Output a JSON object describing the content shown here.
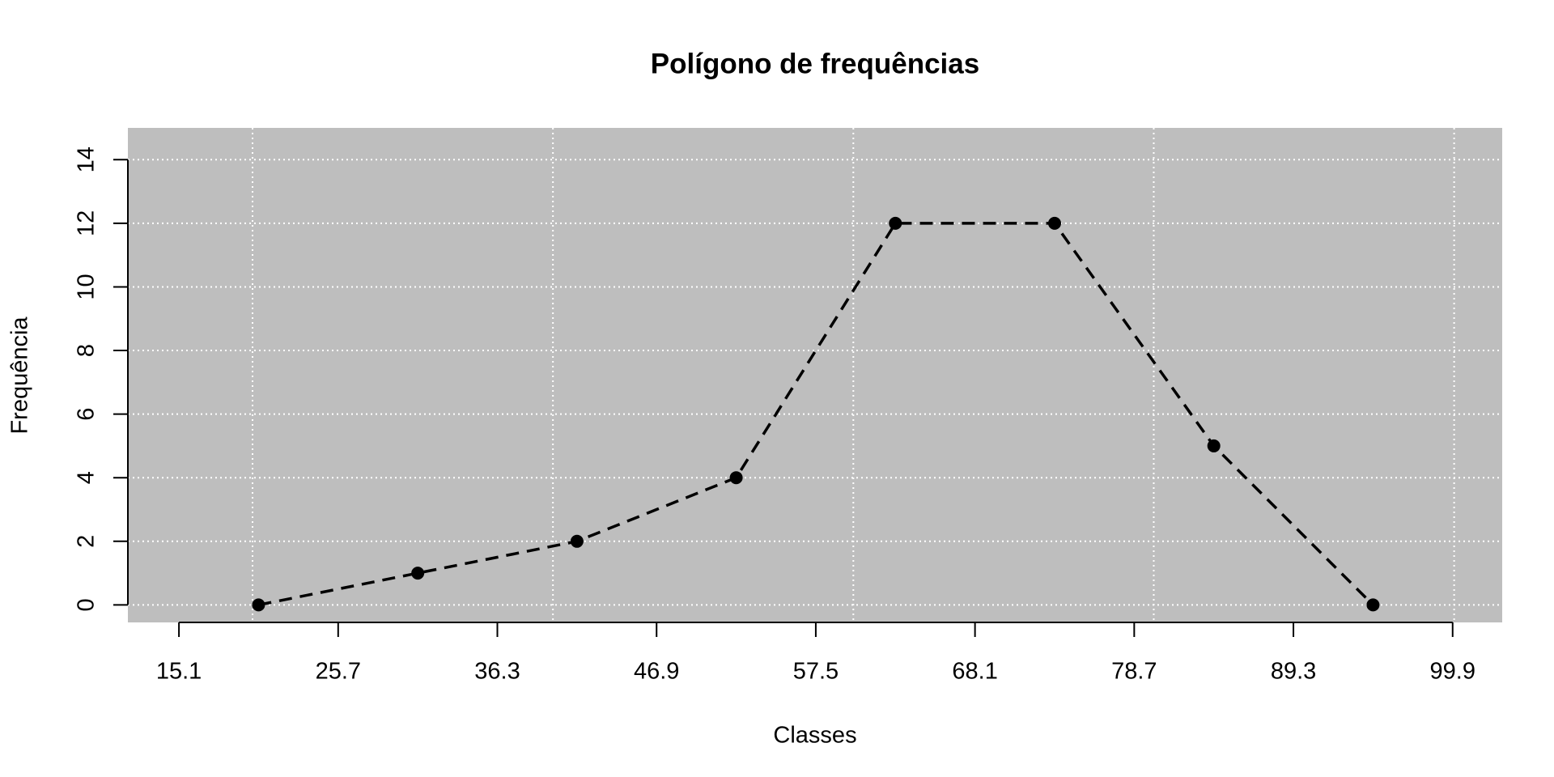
{
  "chart_data": {
    "type": "line",
    "title": "Polígono de frequências",
    "x_label": "Classes",
    "y_label": "Frequência",
    "x": [
      20.4,
      31.0,
      41.6,
      52.2,
      62.8,
      73.4,
      84.0,
      94.6
    ],
    "values": [
      0,
      1,
      2,
      4,
      12,
      12,
      5,
      0
    ],
    "color": "#000000",
    "background": "#bebebe",
    "xlim": [
      11.7,
      103.2
    ],
    "ylim": [
      -0.55,
      15
    ],
    "xticks": [
      15.1,
      25.7,
      36.3,
      46.9,
      57.5,
      68.1,
      78.7,
      89.3,
      99.9
    ],
    "yticks": [
      0,
      2,
      4,
      6,
      8,
      10,
      12,
      14
    ],
    "xgrid": [
      20,
      40,
      60,
      80,
      100
    ],
    "grid": true
  }
}
